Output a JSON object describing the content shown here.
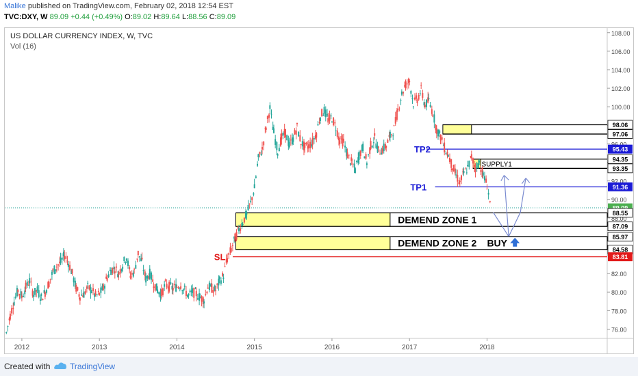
{
  "header": {
    "user": "Malike",
    "published": "published on TradingView.com, February 02, 2018 12:54 EST",
    "symbol": "TVC:DXY, W",
    "price": "89.09",
    "change": "+0.44 (+0.49%)",
    "o_label": "O:",
    "o": "89.02",
    "h_label": "H:",
    "h": "89.64",
    "l_label": "L:",
    "l": "88.56",
    "c_label": "C:",
    "c": "89.09"
  },
  "legend": {
    "title": "US DOLLAR CURRENCY INDEX, W, TVC",
    "vol": "Vol (16)"
  },
  "footer": {
    "created": "Created with",
    "brand": "TradingView"
  },
  "colors": {
    "up": "#26a69a",
    "down": "#ef5350",
    "blue": "#1c1cd6",
    "red": "#e21a1a",
    "zone": "#ffff99"
  },
  "chart_data": {
    "type": "candlestick",
    "y_ticks": [
      "76.00",
      "78.00",
      "80.00",
      "82.00",
      "84.00",
      "86.00",
      "88.00",
      "90.00",
      "92.00",
      "94.00",
      "96.00",
      "98.00",
      "100.00",
      "102.00",
      "104.00",
      "106.00",
      "108.00"
    ],
    "ylim": [
      75,
      108.5
    ],
    "x_ticks": [
      {
        "label": "2012",
        "year": 2012.0
      },
      {
        "label": "2013",
        "year": 2013.0
      },
      {
        "label": "2014",
        "year": 2014.0
      },
      {
        "label": "2015",
        "year": 2015.0
      },
      {
        "label": "2016",
        "year": 2016.0
      },
      {
        "label": "2017",
        "year": 2017.0
      },
      {
        "label": "2018",
        "year": 2018.0
      }
    ],
    "xlim": [
      2011.78,
      2019.55
    ],
    "path": [
      [
        2011.8,
        75.6
      ],
      [
        2011.85,
        77.5
      ],
      [
        2011.9,
        79.0
      ],
      [
        2011.95,
        80.2
      ],
      [
        2012.0,
        79.5
      ],
      [
        2012.05,
        80.5
      ],
      [
        2012.1,
        81.2
      ],
      [
        2012.15,
        79.8
      ],
      [
        2012.2,
        80.2
      ],
      [
        2012.25,
        79.4
      ],
      [
        2012.3,
        80.0
      ],
      [
        2012.35,
        81.0
      ],
      [
        2012.4,
        82.2
      ],
      [
        2012.45,
        82.8
      ],
      [
        2012.5,
        83.2
      ],
      [
        2012.55,
        84.0
      ],
      [
        2012.6,
        83.2
      ],
      [
        2012.65,
        82.0
      ],
      [
        2012.7,
        80.4
      ],
      [
        2012.75,
        79.6
      ],
      [
        2012.8,
        79.8
      ],
      [
        2012.85,
        80.5
      ],
      [
        2012.9,
        80.2
      ],
      [
        2012.95,
        79.6
      ],
      [
        2013.0,
        79.8
      ],
      [
        2013.05,
        80.4
      ],
      [
        2013.1,
        81.6
      ],
      [
        2013.15,
        82.4
      ],
      [
        2013.2,
        82.6
      ],
      [
        2013.25,
        82.0
      ],
      [
        2013.3,
        83.0
      ],
      [
        2013.35,
        83.8
      ],
      [
        2013.4,
        81.8
      ],
      [
        2013.45,
        82.2
      ],
      [
        2013.5,
        84.2
      ],
      [
        2013.55,
        83.2
      ],
      [
        2013.6,
        81.4
      ],
      [
        2013.65,
        82.0
      ],
      [
        2013.7,
        81.0
      ],
      [
        2013.75,
        80.2
      ],
      [
        2013.8,
        79.8
      ],
      [
        2013.85,
        80.8
      ],
      [
        2013.9,
        80.6
      ],
      [
        2013.95,
        80.4
      ],
      [
        2014.0,
        80.6
      ],
      [
        2014.05,
        80.8
      ],
      [
        2014.1,
        80.2
      ],
      [
        2014.15,
        79.6
      ],
      [
        2014.2,
        80.0
      ],
      [
        2014.25,
        79.8
      ],
      [
        2014.3,
        79.4
      ],
      [
        2014.35,
        79.2
      ],
      [
        2014.4,
        80.6
      ],
      [
        2014.45,
        80.4
      ],
      [
        2014.5,
        80.2
      ],
      [
        2014.55,
        81.2
      ],
      [
        2014.6,
        81.8
      ],
      [
        2014.65,
        83.6
      ],
      [
        2014.7,
        84.6
      ],
      [
        2014.75,
        85.8
      ],
      [
        2014.8,
        86.8
      ],
      [
        2014.85,
        87.6
      ],
      [
        2014.9,
        88.4
      ],
      [
        2014.95,
        89.6
      ],
      [
        2015.0,
        91.2
      ],
      [
        2015.05,
        94.4
      ],
      [
        2015.1,
        95.4
      ],
      [
        2015.15,
        97.8
      ],
      [
        2015.2,
        99.8
      ],
      [
        2015.25,
        97.2
      ],
      [
        2015.3,
        95.2
      ],
      [
        2015.35,
        96.6
      ],
      [
        2015.4,
        97.2
      ],
      [
        2015.45,
        95.8
      ],
      [
        2015.5,
        96.6
      ],
      [
        2015.55,
        97.8
      ],
      [
        2015.6,
        96.2
      ],
      [
        2015.65,
        95.6
      ],
      [
        2015.7,
        95.8
      ],
      [
        2015.75,
        96.2
      ],
      [
        2015.8,
        97.2
      ],
      [
        2015.85,
        99.0
      ],
      [
        2015.9,
        99.6
      ],
      [
        2015.95,
        98.6
      ],
      [
        2016.0,
        98.8
      ],
      [
        2016.05,
        97.8
      ],
      [
        2016.1,
        96.4
      ],
      [
        2016.15,
        96.2
      ],
      [
        2016.2,
        94.8
      ],
      [
        2016.25,
        94.0
      ],
      [
        2016.3,
        93.2
      ],
      [
        2016.35,
        94.8
      ],
      [
        2016.4,
        95.6
      ],
      [
        2016.45,
        94.0
      ],
      [
        2016.5,
        95.8
      ],
      [
        2016.55,
        96.6
      ],
      [
        2016.6,
        95.2
      ],
      [
        2016.65,
        95.4
      ],
      [
        2016.7,
        95.8
      ],
      [
        2016.75,
        96.8
      ],
      [
        2016.8,
        97.6
      ],
      [
        2016.85,
        99.6
      ],
      [
        2016.9,
        101.4
      ],
      [
        2016.95,
        102.4
      ],
      [
        2017.0,
        102.8
      ],
      [
        2017.05,
        100.4
      ],
      [
        2017.1,
        100.8
      ],
      [
        2017.15,
        101.8
      ],
      [
        2017.2,
        100.2
      ],
      [
        2017.25,
        100.6
      ],
      [
        2017.3,
        99.4
      ],
      [
        2017.35,
        97.6
      ],
      [
        2017.4,
        96.8
      ],
      [
        2017.45,
        95.6
      ],
      [
        2017.5,
        94.8
      ],
      [
        2017.55,
        93.6
      ],
      [
        2017.6,
        92.6
      ],
      [
        2017.65,
        91.8
      ],
      [
        2017.7,
        92.8
      ],
      [
        2017.75,
        93.4
      ],
      [
        2017.8,
        94.6
      ],
      [
        2017.85,
        93.4
      ],
      [
        2017.9,
        94.0
      ],
      [
        2017.95,
        92.6
      ],
      [
        2018.0,
        91.6
      ],
      [
        2018.05,
        89.2
      ]
    ],
    "levels": [
      {
        "label": "98.06",
        "price": 98.06,
        "line": "#000000",
        "bg": "#ffffff",
        "fg": "#000000"
      },
      {
        "label": "97.06",
        "price": 97.06,
        "line": "#000000",
        "bg": "#ffffff",
        "fg": "#000000"
      },
      {
        "label": "95.43",
        "price": 95.43,
        "line": "#1c1cd6",
        "bg": "#1c1cd6",
        "fg": "#ffffff"
      },
      {
        "label": "94.35",
        "price": 94.35,
        "line": "#000000",
        "bg": "#ffffff",
        "fg": "#000000"
      },
      {
        "label": "93.35",
        "price": 93.35,
        "line": "#000000",
        "bg": "#ffffff",
        "fg": "#000000"
      },
      {
        "label": "91.36",
        "price": 91.36,
        "line": "#1c1cd6",
        "bg": "#1c1cd6",
        "fg": "#ffffff"
      },
      {
        "label": "89.09",
        "price": 89.09,
        "line": "#26a69a",
        "bg": "#4caf50",
        "fg": "#ffffff"
      },
      {
        "label": "88.55",
        "price": 88.55,
        "line": "#000000",
        "bg": "#ffffff",
        "fg": "#000000"
      },
      {
        "label": "87.09",
        "price": 87.09,
        "line": "#000000",
        "bg": "#ffffff",
        "fg": "#000000"
      },
      {
        "label": "85.97",
        "price": 85.97,
        "line": "#000000",
        "bg": "#ffffff",
        "fg": "#000000"
      },
      {
        "label": "84.58",
        "price": 84.58,
        "line": "#000000",
        "bg": "#ffffff",
        "fg": "#000000"
      },
      {
        "label": "83.81",
        "price": 83.81,
        "line": "#e21a1a",
        "bg": "#e21a1a",
        "fg": "#ffffff"
      }
    ],
    "annotations": {
      "tp2": "TP2",
      "tp1": "TP1",
      "sl": "SL",
      "supply": "SUPPLY1",
      "zone1": "DEMEND ZONE 1",
      "zone2": "DEMEND ZONE 2",
      "buy": "BUY"
    }
  }
}
